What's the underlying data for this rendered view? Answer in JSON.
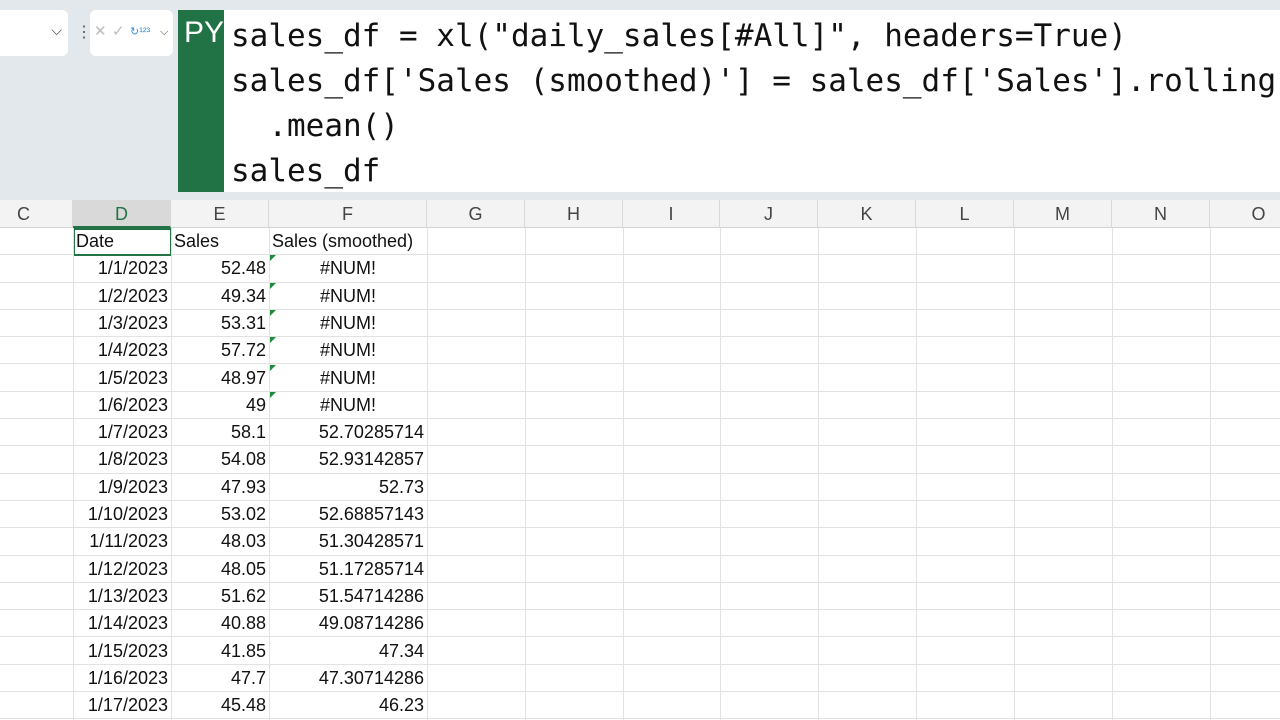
{
  "formula_bar": {
    "name_box": "",
    "py_badge": "PY",
    "code_lines": [
      "sales_df = xl(\"daily_sales[#All]\", headers=True)",
      "sales_df['Sales (smoothed)'] = sales_df['Sales'].rolling",
      "  .mean()",
      "sales_df"
    ]
  },
  "columns": [
    "C",
    "D",
    "E",
    "F",
    "G",
    "H",
    "I",
    "J",
    "K",
    "L",
    "M",
    "N",
    "O"
  ],
  "selected_column": "D",
  "headers": [
    "Date",
    "Sales",
    "Sales (smoothed)"
  ],
  "rows": [
    [
      "1/1/2023",
      "52.48",
      "#NUM!"
    ],
    [
      "1/2/2023",
      "49.34",
      "#NUM!"
    ],
    [
      "1/3/2023",
      "53.31",
      "#NUM!"
    ],
    [
      "1/4/2023",
      "57.72",
      "#NUM!"
    ],
    [
      "1/5/2023",
      "48.97",
      "#NUM!"
    ],
    [
      "1/6/2023",
      "49",
      "#NUM!"
    ],
    [
      "1/7/2023",
      "58.1",
      "52.70285714"
    ],
    [
      "1/8/2023",
      "54.08",
      "52.93142857"
    ],
    [
      "1/9/2023",
      "47.93",
      "52.73"
    ],
    [
      "1/10/2023",
      "53.02",
      "52.68857143"
    ],
    [
      "1/11/2023",
      "48.03",
      "51.30428571"
    ],
    [
      "1/12/2023",
      "48.05",
      "51.17285714"
    ],
    [
      "1/13/2023",
      "51.62",
      "51.54714286"
    ],
    [
      "1/14/2023",
      "40.88",
      "49.08714286"
    ],
    [
      "1/15/2023",
      "41.85",
      "47.34"
    ],
    [
      "1/16/2023",
      "47.7",
      "47.30714286"
    ],
    [
      "1/17/2023",
      "45.48",
      "46.23"
    ]
  ]
}
